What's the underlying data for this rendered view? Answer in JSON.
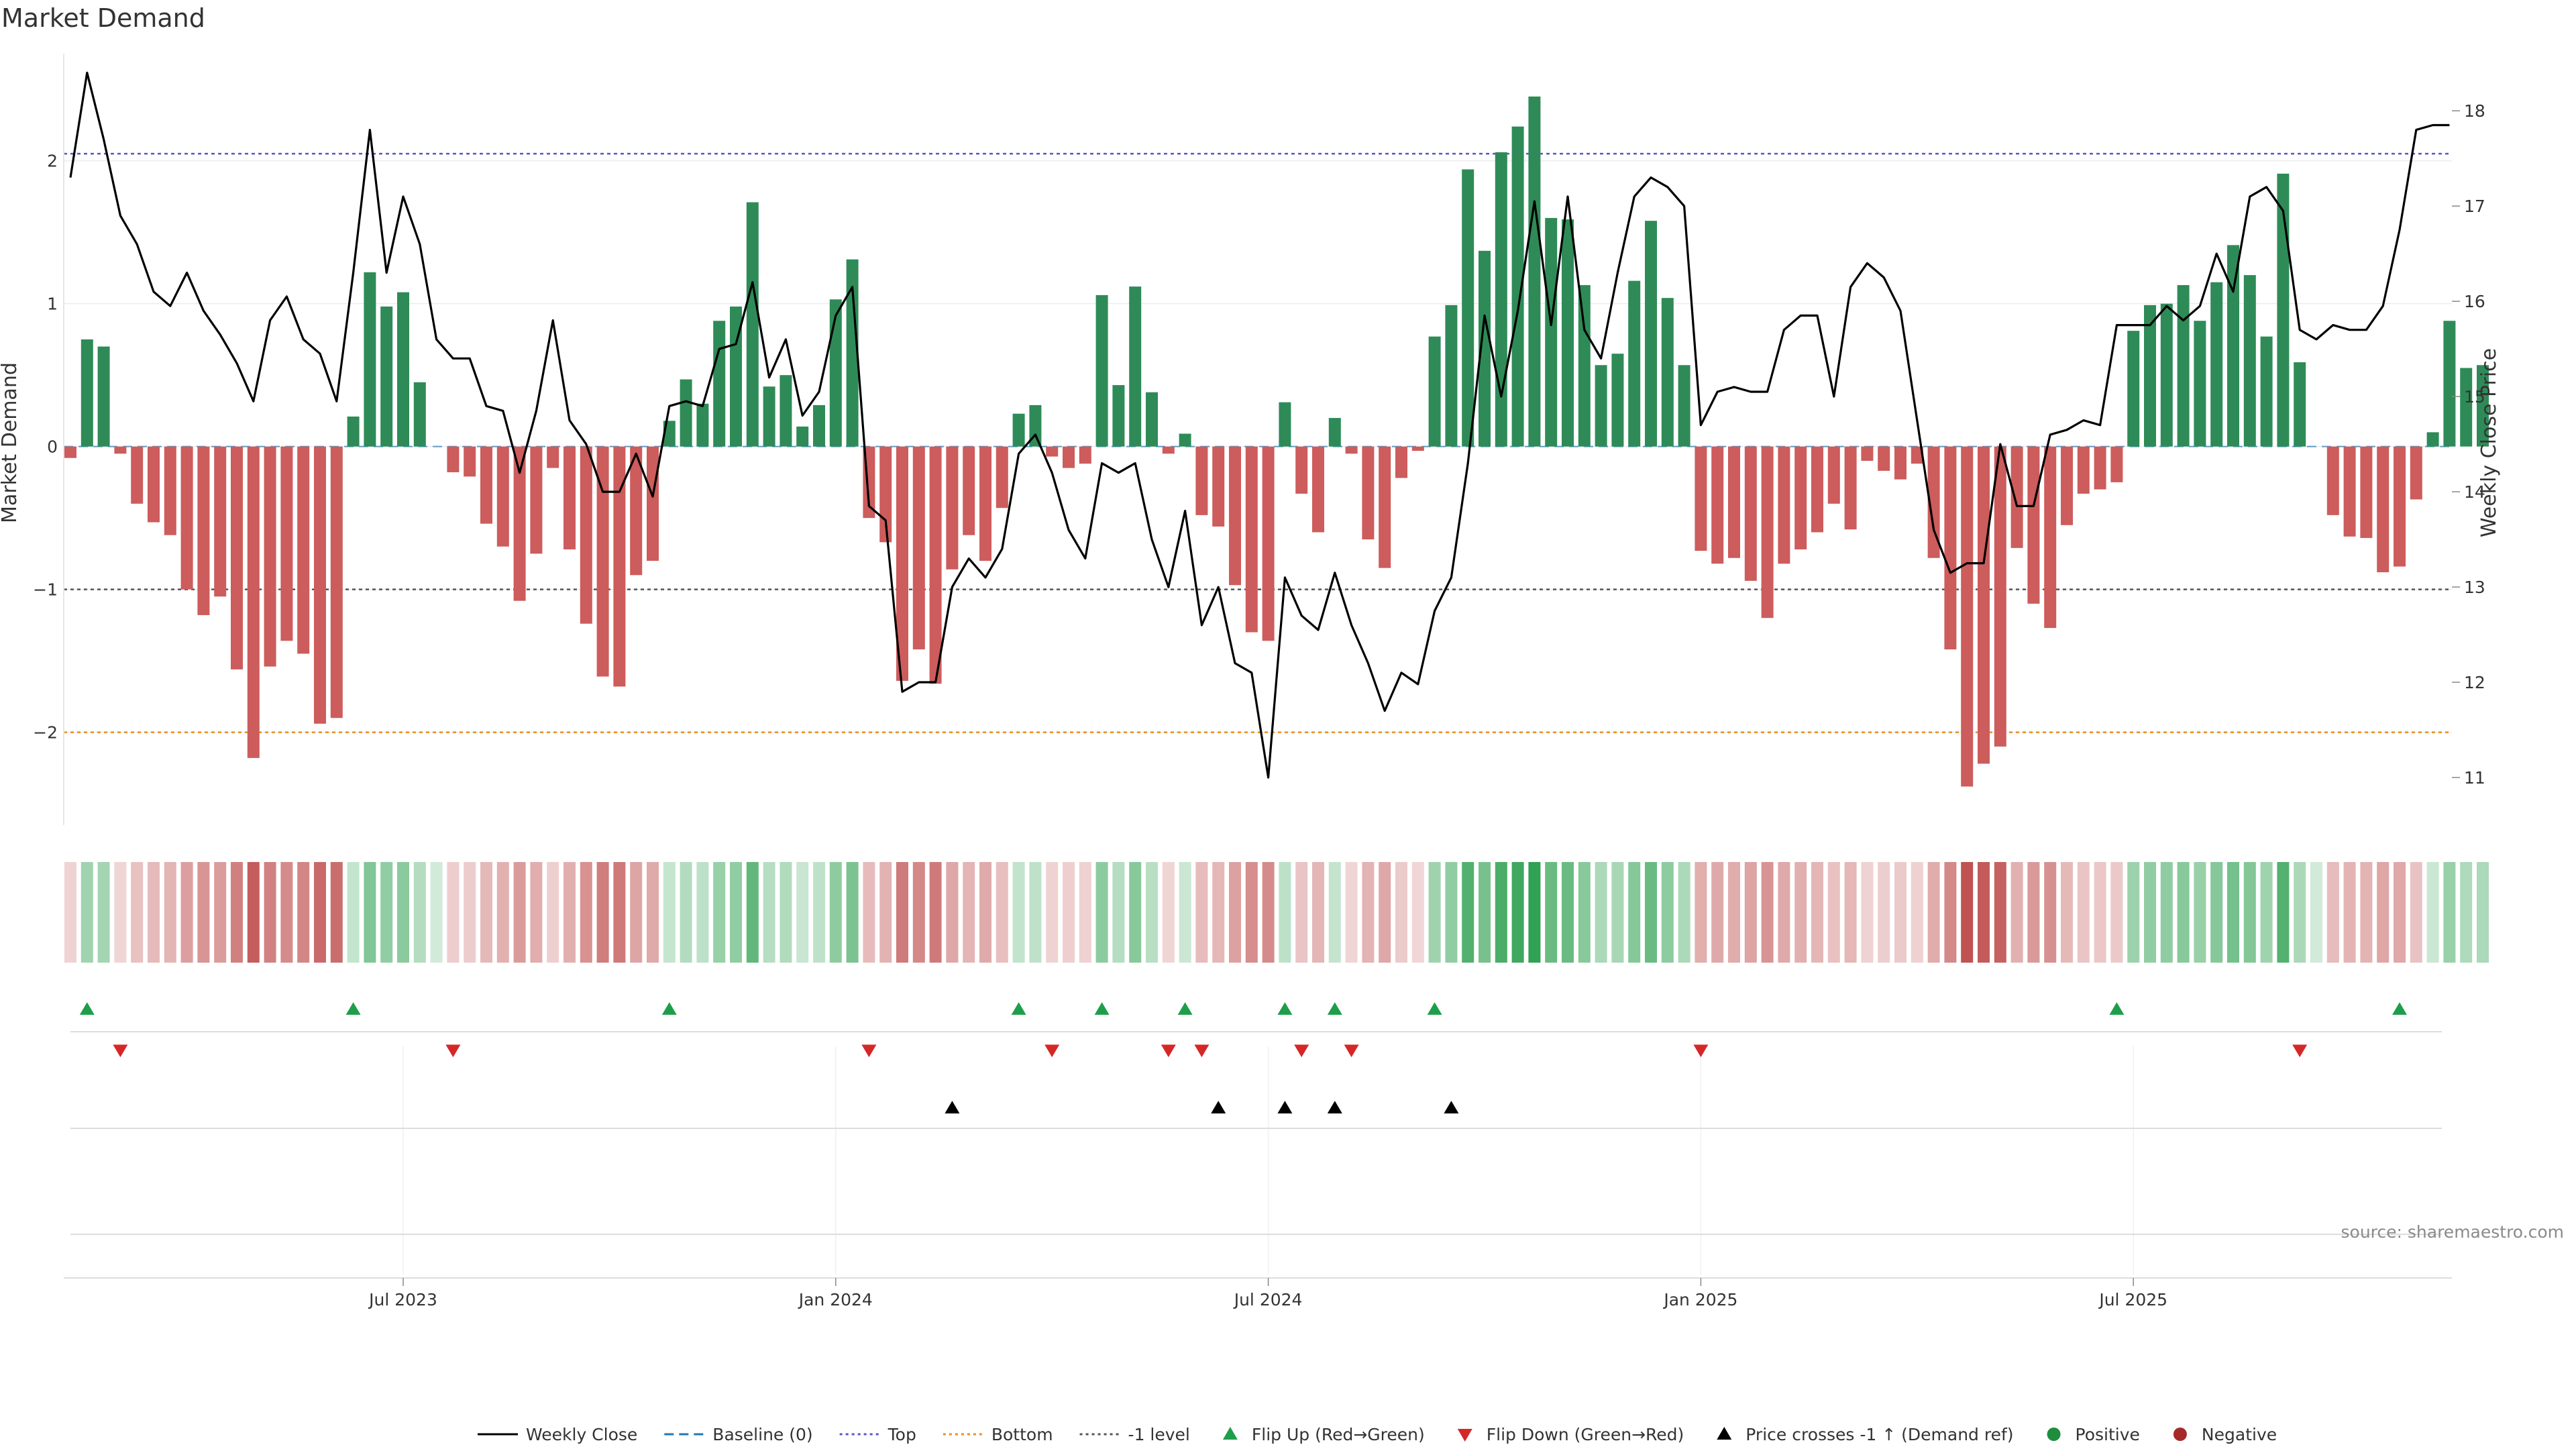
{
  "chart_data": {
    "type": "bar",
    "title": "Market Demand",
    "ylabel_left": "Market Demand",
    "ylabel_right": "Weekly Close Price",
    "source": "source: sharemaestro.com",
    "ylim_left": [
      -2.65,
      2.75
    ],
    "ylim_right": [
      10.5,
      18.6
    ],
    "left_ticks": [
      {
        "value": 2,
        "label": "2"
      },
      {
        "value": 1,
        "label": "1"
      },
      {
        "value": 0,
        "label": "0"
      },
      {
        "value": -1,
        "label": "−1"
      },
      {
        "value": -2,
        "label": "−2"
      }
    ],
    "right_ticks": [
      {
        "value": 18,
        "label": "18"
      },
      {
        "value": 17,
        "label": "17"
      },
      {
        "value": 16,
        "label": "16"
      },
      {
        "value": 15,
        "label": "15"
      },
      {
        "value": 14,
        "label": "14"
      },
      {
        "value": 13,
        "label": "13"
      },
      {
        "value": 12,
        "label": "12"
      },
      {
        "value": 11,
        "label": "11"
      }
    ],
    "x_ticks": [
      {
        "index": 20,
        "label": "Jul 2023"
      },
      {
        "index": 46,
        "label": "Jan 2024"
      },
      {
        "index": 72,
        "label": "Jul 2024"
      },
      {
        "index": 98,
        "label": "Jan 2025"
      },
      {
        "index": 124,
        "label": "Jul 2025"
      }
    ],
    "reference_lines": {
      "top": 2.05,
      "bottom": -2.0,
      "minus_one": -1.0,
      "baseline": 0
    },
    "colors": {
      "positive": "#2e8b57",
      "negative": "#cd5c5c",
      "flip_up": "#1e9e4a",
      "flip_down": "#d62728",
      "cross": "#000000",
      "top_line": "#5555cc",
      "bottom_line": "#e8901c",
      "minus_one_line": "#555555",
      "baseline_line": "#1f77b4",
      "price_line": "#000000"
    },
    "demand": [
      -0.08,
      0.75,
      0.7,
      -0.05,
      -0.4,
      -0.53,
      -0.62,
      -1.0,
      -1.18,
      -1.05,
      -1.56,
      -2.18,
      -1.54,
      -1.36,
      -1.45,
      -1.94,
      -1.9,
      0.21,
      1.22,
      0.98,
      1.08,
      0.45,
      0.0,
      -0.18,
      -0.21,
      -0.54,
      -0.7,
      -1.08,
      -0.75,
      -0.15,
      -0.72,
      -1.24,
      -1.61,
      -1.68,
      -0.9,
      -0.8,
      0.18,
      0.47,
      0.3,
      0.88,
      0.98,
      1.71,
      0.42,
      0.5,
      0.14,
      0.29,
      1.03,
      1.31,
      -0.5,
      -0.67,
      -1.64,
      -1.42,
      -1.66,
      -0.86,
      -0.62,
      -0.8,
      -0.43,
      0.23,
      0.29,
      -0.07,
      -0.15,
      -0.12,
      1.06,
      0.43,
      1.12,
      0.38,
      -0.05,
      0.09,
      -0.48,
      -0.56,
      -0.97,
      -1.3,
      -1.36,
      0.31,
      -0.33,
      -0.6,
      0.2,
      -0.05,
      -0.65,
      -0.85,
      -0.22,
      -0.03,
      0.77,
      0.99,
      1.94,
      1.37,
      2.06,
      2.24,
      2.45,
      1.6,
      1.59,
      1.13,
      0.57,
      0.65,
      1.16,
      1.58,
      1.04,
      0.57,
      -0.73,
      -0.82,
      -0.78,
      -0.94,
      -1.2,
      -0.82,
      -0.72,
      -0.6,
      -0.4,
      -0.58,
      -0.1,
      -0.17,
      -0.23,
      -0.12,
      -0.78,
      -1.42,
      -2.38,
      -2.22,
      -2.1,
      -0.71,
      -1.1,
      -1.27,
      -0.55,
      -0.33,
      -0.3,
      -0.25,
      0.81,
      0.99,
      1.0,
      1.13,
      0.88,
      1.15,
      1.41,
      1.2,
      0.77,
      1.91,
      0.59,
      0.0,
      -0.48,
      -0.63,
      -0.64,
      -0.88,
      -0.84,
      -0.37,
      0.1,
      0.88,
      0.55,
      0.57
    ],
    "price": [
      17.3,
      18.4,
      17.7,
      16.9,
      16.6,
      16.1,
      15.95,
      16.3,
      15.9,
      15.65,
      15.35,
      14.95,
      15.8,
      16.05,
      15.6,
      15.45,
      14.95,
      16.3,
      17.8,
      16.3,
      17.1,
      16.6,
      15.6,
      15.4,
      15.4,
      14.9,
      14.85,
      14.2,
      14.85,
      15.8,
      14.75,
      14.5,
      14.0,
      14.0,
      14.4,
      13.95,
      14.9,
      14.95,
      14.9,
      15.5,
      15.55,
      16.2,
      15.2,
      15.6,
      14.8,
      15.05,
      15.85,
      16.15,
      13.85,
      13.7,
      11.9,
      12.0,
      12.0,
      13.0,
      13.3,
      13.1,
      13.4,
      14.4,
      14.6,
      14.2,
      13.6,
      13.3,
      14.3,
      14.2,
      14.3,
      13.5,
      13.0,
      13.8,
      12.6,
      13.0,
      12.2,
      12.1,
      11.0,
      13.1,
      12.7,
      12.55,
      13.15,
      12.6,
      12.2,
      11.7,
      12.1,
      11.98,
      12.75,
      13.1,
      14.3,
      15.85,
      15.0,
      15.9,
      17.05,
      15.75,
      17.1,
      15.7,
      15.4,
      16.3,
      17.1,
      17.3,
      17.2,
      17.0,
      14.7,
      15.05,
      15.1,
      15.05,
      15.05,
      15.7,
      15.85,
      15.85,
      15.0,
      16.15,
      16.4,
      16.25,
      15.9,
      14.75,
      13.6,
      13.15,
      13.25,
      13.25,
      14.5,
      13.85,
      13.85,
      14.6,
      14.65,
      14.75,
      14.7,
      15.75,
      15.75,
      15.75,
      15.95,
      15.8,
      15.95,
      16.5,
      16.1,
      17.1,
      17.2,
      16.95,
      15.7,
      15.6,
      15.75,
      15.7,
      15.7,
      15.95,
      16.75,
      17.8,
      17.85,
      17.85
    ],
    "markers": {
      "flip_up": [
        1,
        17,
        36,
        57,
        62,
        67,
        73,
        76,
        82,
        123,
        140
      ],
      "flip_down": [
        3,
        23,
        48,
        59,
        66,
        68,
        74,
        77,
        98,
        134
      ],
      "price_cross": [
        53,
        69,
        73,
        76,
        83
      ]
    },
    "legend": [
      {
        "key": "close",
        "label": "Weekly Close"
      },
      {
        "key": "baseline",
        "label": "Baseline (0)"
      },
      {
        "key": "top",
        "label": "Top"
      },
      {
        "key": "bottom",
        "label": "Bottom"
      },
      {
        "key": "minus1",
        "label": "-1 level"
      },
      {
        "key": "flipup",
        "label": "Flip Up (Red→Green)"
      },
      {
        "key": "flipdown",
        "label": "Flip Down (Green→Red)"
      },
      {
        "key": "cross",
        "label": "Price crosses -1 ↑ (Demand ref)"
      },
      {
        "key": "positive",
        "label": "Positive"
      },
      {
        "key": "negative",
        "label": "Negative"
      }
    ]
  }
}
